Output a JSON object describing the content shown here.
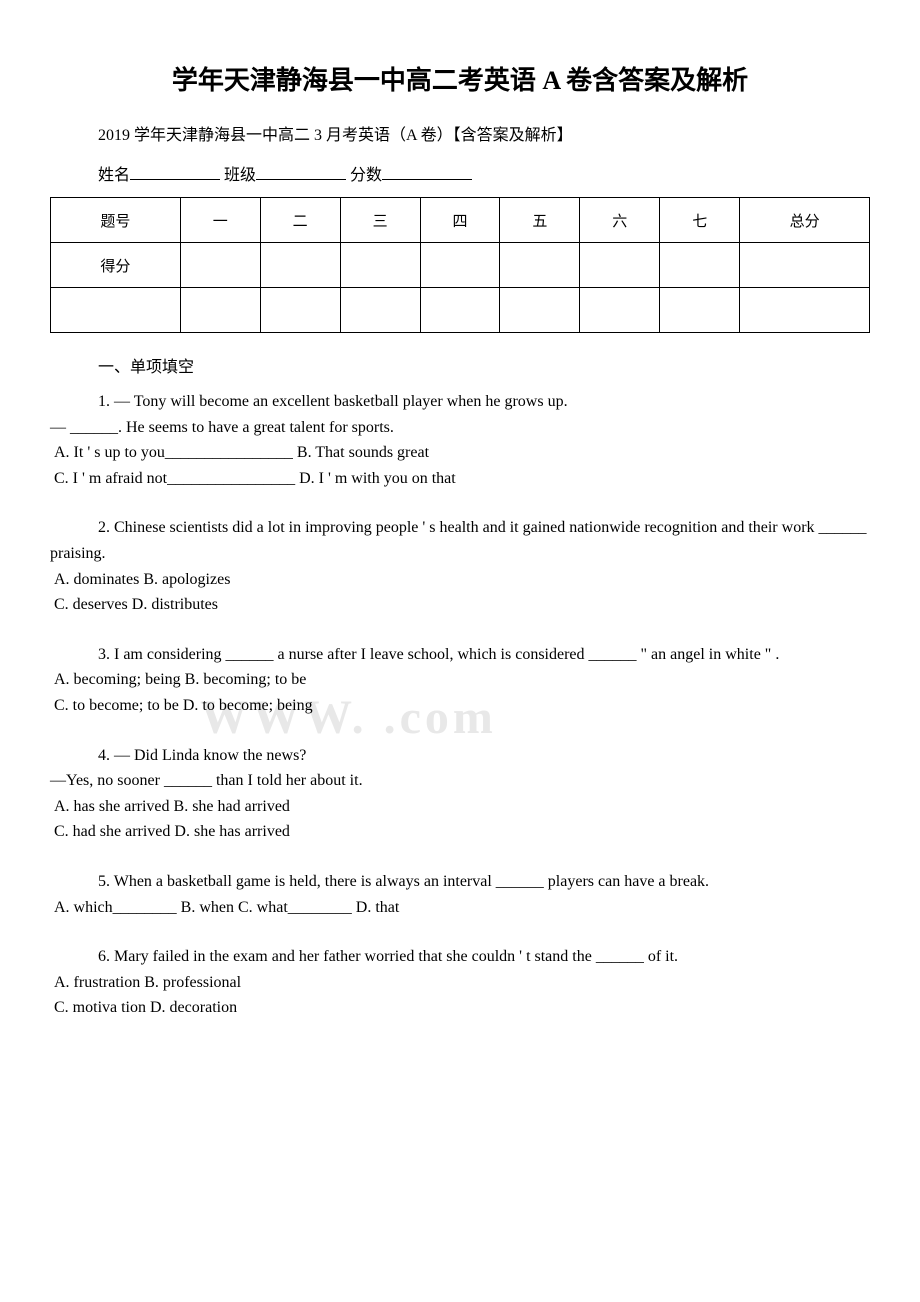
{
  "title": "学年天津静海县一中高二考英语 A 卷含答案及解析",
  "subtitle": "2019 学年天津静海县一中高二 3 月考英语（A 卷）【含答案及解析】",
  "nameLine": {
    "name": "姓名",
    "class": "班级",
    "score": "分数"
  },
  "scoreTable": {
    "headers": [
      "题号",
      "一",
      "二",
      "三",
      "四",
      "五",
      "六",
      "七",
      "总分"
    ],
    "row2": "得分"
  },
  "section1": "一、单项填空",
  "questions": [
    {
      "num": "1.",
      "line1": "— Tony will become an excellent basketball player when he grows up.",
      "line2": "— ______. He seems to have a great talent for sports.",
      "optA": "A. It ' s up to you________________",
      "optB": "B. That sounds great",
      "optC": "C. I ' m afraid not________________",
      "optD": "D. I ' m with you on that"
    },
    {
      "num": "2.",
      "line1": "Chinese scientists did a lot in improving people ' s health and it gained nationwide recognition and their work ______ praising.",
      "optA": "A. dominates",
      "optB": "B. apologizes",
      "optC": "C. deserves",
      "optD": "D. distributes"
    },
    {
      "num": "3.",
      "line1": "I am  considering ______ a nurse after I leave school, which is considered ______  \" an angel in white \" .",
      "optA": "A. becoming; being",
      "optB": "B. becoming; to be",
      "optC": "C. to become; to be",
      "optD": "D. to become; being"
    },
    {
      "num": "4.",
      "line1": "— Did Linda know the news?",
      "line2": "—Yes, no sooner ______ than I told her about it.",
      "optA": "A. has she arrived",
      "optB": "B. she had arrived",
      "optC": "C. had she arrived",
      "optD": "D. she has arrived"
    },
    {
      "num": "5.",
      "line1": "When a basketball game is held, there is always an interval ______ players can have a break.",
      "optA": "A. which________",
      "optB": "B. when",
      "optC": "C. what________",
      "optD": "D. that"
    },
    {
      "num": "6.",
      "line1": "Mary failed in the exam and her father worried that she couldn ' t stand the ______ of it.",
      "optA": "A. frustration",
      "optB": "B. professional",
      "optC": "C. motiva tion",
      "optD": "D. decoration"
    }
  ],
  "watermark": "WWW.         .com"
}
